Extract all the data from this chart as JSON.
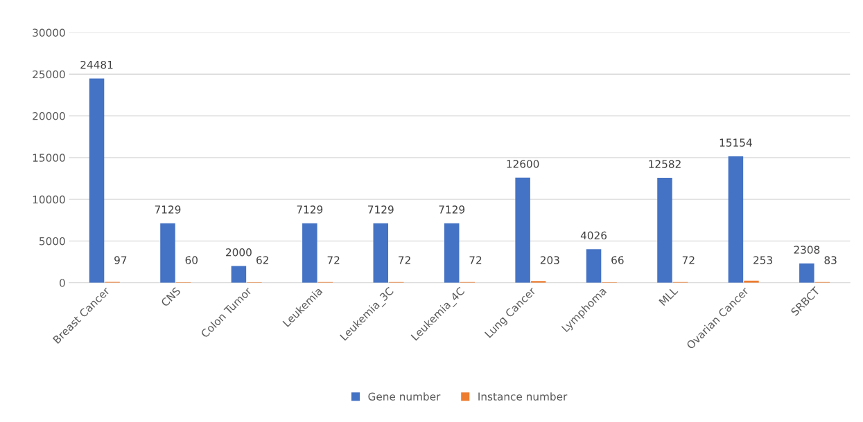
{
  "chart_data": {
    "type": "bar",
    "categories": [
      "Breast Cancer",
      "CNS",
      "Colon Tumor",
      "Leukemia",
      "Leukemia_3C",
      "Leukemia_4C",
      "Lung Cancer",
      "Lymphoma",
      "MLL",
      "Ovarian Cancer",
      "SRBCT"
    ],
    "series": [
      {
        "name": "Gene number",
        "color": "#4472c4",
        "values": [
          24481,
          7129,
          2000,
          7129,
          7129,
          7129,
          12600,
          4026,
          12582,
          15154,
          2308
        ]
      },
      {
        "name": "Instance number",
        "color": "#ed7d31",
        "values": [
          97,
          60,
          62,
          72,
          72,
          72,
          203,
          66,
          72,
          253,
          83
        ]
      }
    ],
    "ylim": [
      0,
      30000
    ],
    "yticks": [
      0,
      5000,
      10000,
      15000,
      20000,
      25000,
      30000
    ],
    "grid": "y",
    "legend": "bottom",
    "data_labels": true
  }
}
